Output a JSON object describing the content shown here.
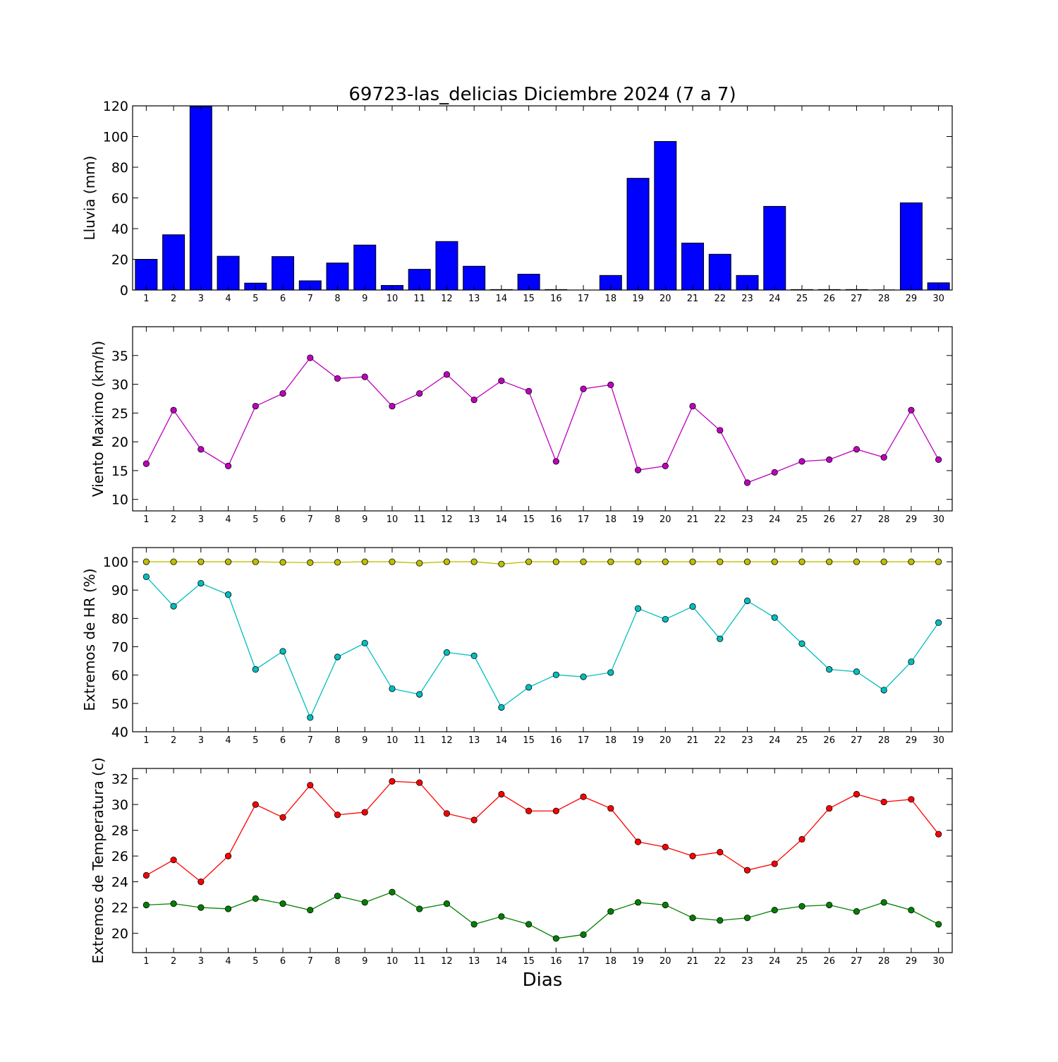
{
  "title": "69723-las_delicias Diciembre 2024  (7 a 7)",
  "xlabel": "Dias",
  "days": [
    1,
    2,
    3,
    4,
    5,
    6,
    7,
    8,
    9,
    10,
    11,
    12,
    13,
    14,
    15,
    16,
    17,
    18,
    19,
    20,
    21,
    22,
    23,
    24,
    25,
    26,
    27,
    28,
    29,
    30
  ],
  "chart_data": [
    {
      "type": "bar",
      "ylabel": "Lluvia (mm)",
      "ylim": [
        0,
        120
      ],
      "yticks": [
        0,
        20,
        40,
        60,
        80,
        100,
        120
      ],
      "categories": [
        1,
        2,
        3,
        4,
        5,
        6,
        7,
        8,
        9,
        10,
        11,
        12,
        13,
        14,
        15,
        16,
        17,
        18,
        19,
        20,
        21,
        22,
        23,
        24,
        25,
        26,
        27,
        28,
        29,
        30
      ],
      "series": [
        {
          "color": "#0000ff",
          "values": [
            20.0,
            36.0,
            119.5,
            22.0,
            4.5,
            21.8,
            6.0,
            17.6,
            29.3,
            3.0,
            13.5,
            31.6,
            15.5,
            0.3,
            10.3,
            0.3,
            0,
            9.5,
            72.8,
            96.8,
            30.6,
            23.3,
            9.5,
            54.5,
            0.3,
            0.3,
            0.3,
            0.1,
            56.8,
            4.7
          ]
        }
      ]
    },
    {
      "type": "line",
      "ylabel": "Viento Maximo (km/h)",
      "ylim": [
        8,
        40
      ],
      "yticks": [
        10,
        15,
        20,
        25,
        30,
        35
      ],
      "series": [
        {
          "color": "#bf00bf",
          "values": [
            16.2,
            25.5,
            18.7,
            15.8,
            26.2,
            28.4,
            34.6,
            31.0,
            31.3,
            26.2,
            28.4,
            31.7,
            27.3,
            30.6,
            28.8,
            16.6,
            29.2,
            29.9,
            15.1,
            15.8,
            26.2,
            22.0,
            12.9,
            14.7,
            16.6,
            16.9,
            18.7,
            17.3,
            25.5,
            16.9
          ]
        }
      ]
    },
    {
      "type": "line",
      "ylabel": "Extremos de HR (%)",
      "ylim": [
        40,
        105
      ],
      "yticks": [
        40,
        50,
        60,
        70,
        80,
        90,
        100
      ],
      "series": [
        {
          "color": "#bfbf00",
          "values": [
            100,
            100,
            100,
            100,
            100,
            99.8,
            99.7,
            99.8,
            100,
            100,
            99.5,
            100,
            100,
            99.2,
            100,
            100,
            100,
            100,
            100,
            100,
            100,
            100,
            100,
            100,
            100,
            100,
            100,
            100,
            100,
            100
          ]
        },
        {
          "color": "#00bfbf",
          "values": [
            94.7,
            84.3,
            92.4,
            88.4,
            62.0,
            68.4,
            45.0,
            66.4,
            71.3,
            55.2,
            53.2,
            68.0,
            66.8,
            48.6,
            55.7,
            60.1,
            59.4,
            60.9,
            83.5,
            79.7,
            84.2,
            72.8,
            86.2,
            80.3,
            71.1,
            62.0,
            61.2,
            54.7,
            64.7,
            78.5
          ]
        }
      ]
    },
    {
      "type": "line",
      "ylabel": "Extremos de Temperatura (c)",
      "ylim": [
        18.5,
        32.8
      ],
      "yticks": [
        20,
        22,
        24,
        26,
        28,
        30,
        32
      ],
      "series": [
        {
          "color": "#ff0000",
          "values": [
            24.5,
            25.7,
            24.0,
            26.0,
            30.0,
            29.0,
            31.5,
            29.2,
            29.4,
            31.8,
            31.7,
            29.3,
            28.8,
            30.8,
            29.5,
            29.5,
            30.6,
            29.7,
            27.1,
            26.7,
            26.0,
            26.3,
            24.9,
            25.4,
            27.3,
            29.7,
            30.8,
            30.2,
            30.4,
            27.7
          ]
        },
        {
          "color": "#008000",
          "values": [
            22.2,
            22.3,
            22.0,
            21.9,
            22.7,
            22.3,
            21.8,
            22.9,
            22.4,
            23.2,
            21.9,
            22.3,
            20.7,
            21.3,
            20.7,
            19.6,
            19.9,
            21.7,
            22.4,
            22.2,
            21.2,
            21.0,
            21.2,
            21.8,
            22.1,
            22.2,
            21.7,
            22.4,
            21.8,
            20.7
          ]
        }
      ]
    }
  ]
}
